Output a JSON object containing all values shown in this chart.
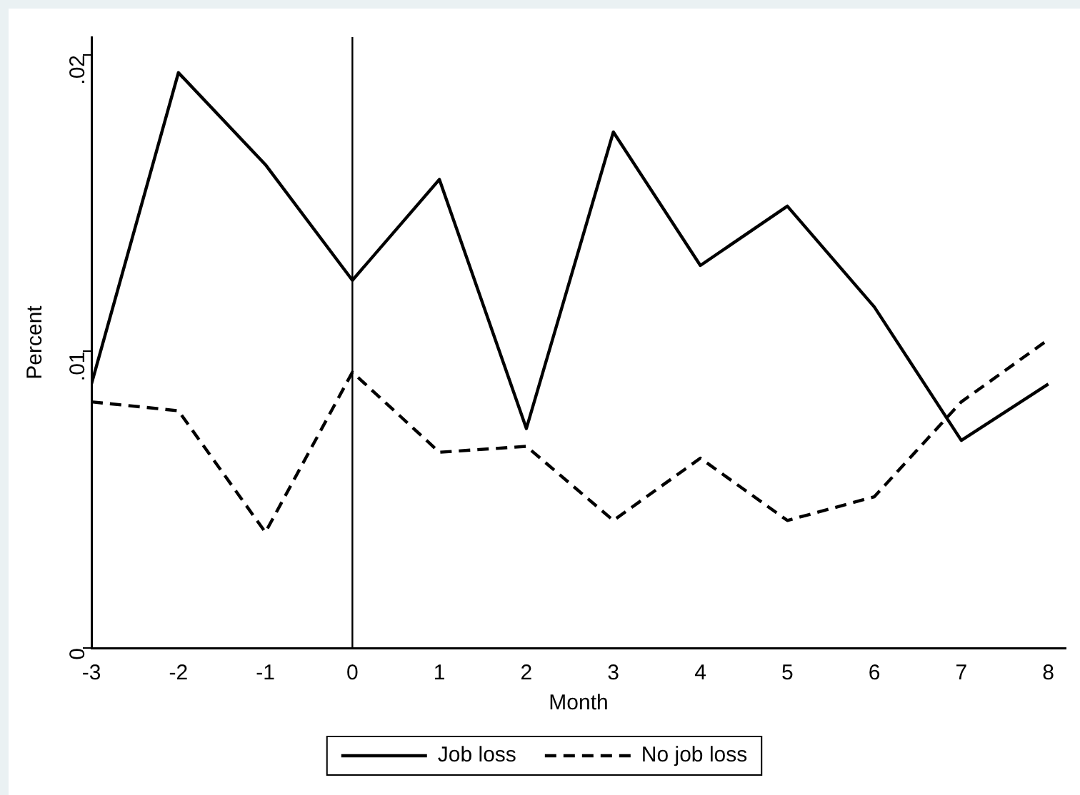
{
  "chart_data": {
    "type": "line",
    "xlabel": "Month",
    "ylabel": "Percent",
    "x": [
      -3,
      -2,
      -1,
      0,
      1,
      2,
      3,
      4,
      5,
      6,
      7,
      8
    ],
    "series": [
      {
        "name": "Job loss",
        "color": "#000000",
        "line_style": "solid",
        "values": [
          0.0089,
          0.0194,
          0.0163,
          0.0124,
          0.0158,
          0.0074,
          0.0174,
          0.0129,
          0.0149,
          0.0115,
          0.007,
          0.0089
        ]
      },
      {
        "name": "No job loss",
        "color": "#000000",
        "line_style": "dashed",
        "values": [
          0.0083,
          0.008,
          0.0039,
          0.0093,
          0.0066,
          0.0068,
          0.0043,
          0.0064,
          0.0043,
          0.0051,
          0.0083,
          0.0104
        ]
      }
    ],
    "xlim": [
      -3,
      8.2
    ],
    "xticks": [
      -3,
      -2,
      -1,
      0,
      1,
      2,
      3,
      4,
      5,
      6,
      7,
      8
    ],
    "ylim": [
      0,
      0.0206
    ],
    "yticks": [
      {
        "value": 0,
        "label": "0"
      },
      {
        "value": 0.01,
        "label": ".01"
      },
      {
        "value": 0.02,
        "label": ".02"
      }
    ],
    "ref_lines": [
      {
        "axis": "x",
        "value": 0,
        "color": "#000000"
      }
    ],
    "grid": false,
    "legend": "bottom",
    "marker": "none"
  }
}
